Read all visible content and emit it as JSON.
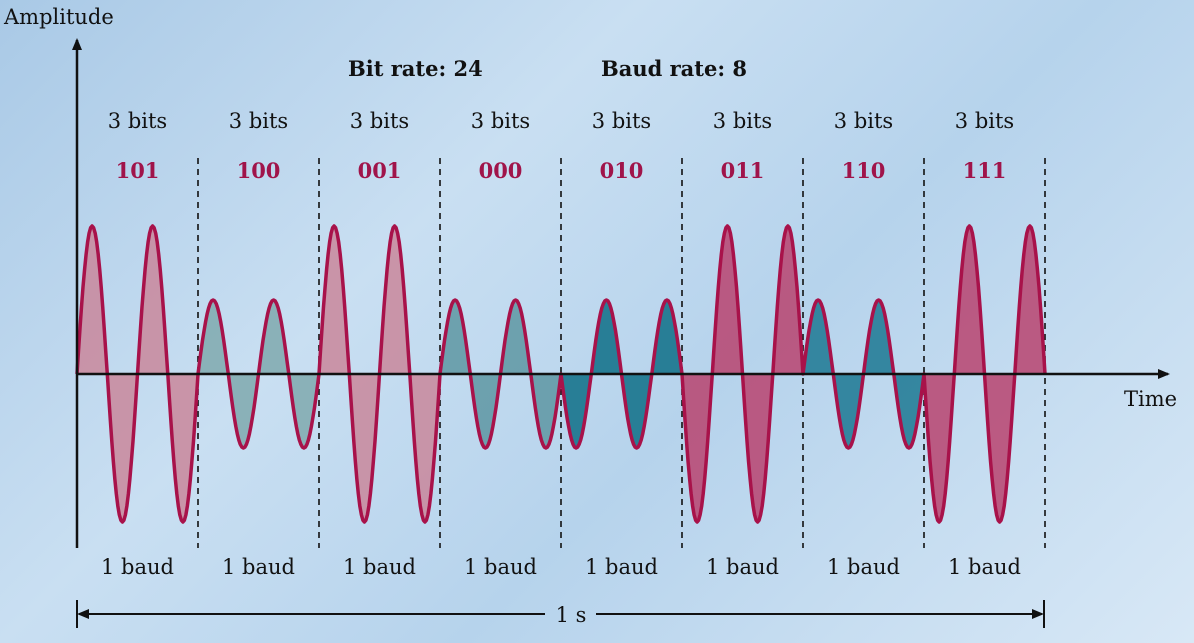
{
  "labels": {
    "y_axis": "Amplitude",
    "x_axis": "Time",
    "bit_rate": "Bit rate: 24",
    "baud_rate": "Baud rate: 8",
    "duration": "1 s"
  },
  "signals": [
    {
      "bits_label": "3 bits",
      "code": "101",
      "baud_label": "1 baud",
      "amplitude": 1.0,
      "phase": "0",
      "fill": "#c9879b"
    },
    {
      "bits_label": "3 bits",
      "code": "100",
      "baud_label": "1 baud",
      "amplitude": 0.5,
      "phase": "0",
      "fill": "#7fa9ae"
    },
    {
      "bits_label": "3 bits",
      "code": "001",
      "baud_label": "1 baud",
      "amplitude": 1.0,
      "phase": "0",
      "fill": "#c9879b"
    },
    {
      "bits_label": "3 bits",
      "code": "000",
      "baud_label": "1 baud",
      "amplitude": 0.5,
      "phase": "0",
      "fill": "#5e96a2"
    },
    {
      "bits_label": "3 bits",
      "code": "010",
      "baud_label": "1 baud",
      "amplitude": 0.5,
      "phase": "180",
      "fill": "#0e6e86"
    },
    {
      "bits_label": "3 bits",
      "code": "011",
      "baud_label": "1 baud",
      "amplitude": 1.0,
      "phase": "180",
      "fill": "#b8436e"
    },
    {
      "bits_label": "3 bits",
      "code": "110",
      "baud_label": "1 baud",
      "amplitude": 0.5,
      "phase": "0",
      "fill": "#1c7892"
    },
    {
      "bits_label": "3 bits",
      "code": "111",
      "baud_label": "1 baud",
      "amplitude": 1.0,
      "phase": "180",
      "fill": "#b8436e"
    }
  ],
  "colors": {
    "wave_stroke": "#a8124a",
    "code_text": "#a0144a",
    "axis": "#111111"
  }
}
